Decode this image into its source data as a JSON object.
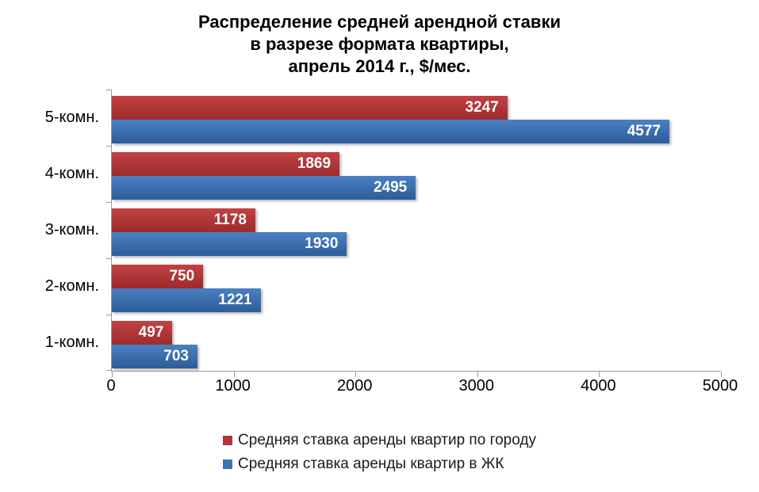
{
  "title": {
    "line1": "Распределение средней арендной ставки",
    "line2": "в разрезе формата квартиры,",
    "line3": "апрель 2014 г., $/мес."
  },
  "chart_data": {
    "type": "bar",
    "orientation": "horizontal",
    "title": "Распределение средней арендной ставки в разрезе формата квартиры, апрель 2014 г., $/мес.",
    "categories": [
      "5-комн.",
      "4-комн.",
      "3-комн.",
      "2-комн.",
      "1-комн."
    ],
    "series": [
      {
        "name": "Средняя ставка аренды квартир по городу",
        "color": "#b23638",
        "color_top": "#c44143",
        "color_bottom": "#9c2b2d",
        "values": [
          3247,
          1869,
          1178,
          750,
          497
        ]
      },
      {
        "name": "Средняя ставка аренды квартир в ЖК",
        "color": "#3b73b8",
        "color_top": "#4a80c4",
        "color_bottom": "#2e5c99",
        "values": [
          4577,
          2495,
          1930,
          1221,
          703
        ]
      }
    ],
    "x_ticks": [
      0,
      1000,
      2000,
      3000,
      4000,
      5000
    ],
    "xlim": [
      0,
      5000
    ],
    "grid": false,
    "legend_position": "bottom",
    "value_label_color": "#ffffff",
    "axis_color": "#9b9b9b"
  }
}
